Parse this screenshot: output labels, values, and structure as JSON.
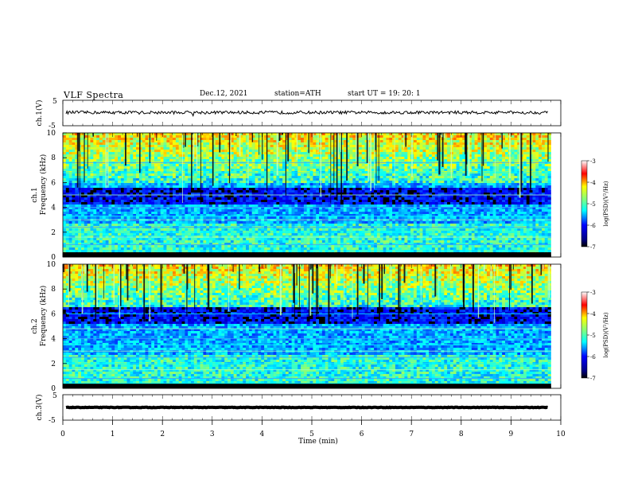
{
  "header": {
    "title": "VLF  Spectra",
    "date": "Dec.12, 2021",
    "station": "station=ATH",
    "start": "start  UT  =    19: 20: 1"
  },
  "chart_data": [
    {
      "type": "line",
      "panel": "ch1-waveform",
      "ylabel": "ch.1(V)",
      "xlim": [
        0,
        10
      ],
      "ylim": [
        -5,
        5
      ],
      "yticks": [
        "5",
        "-5"
      ],
      "level_mean": 0.2,
      "level_band": [
        -0.4,
        0.8
      ]
    },
    {
      "type": "heatmap",
      "panel": "ch1-spectrogram",
      "ylabel_top": "ch.1",
      "ylabel": "Frequency  (kHz)",
      "xlim": [
        0,
        9.8
      ],
      "ylim": [
        0,
        10
      ],
      "yticks": [
        "0",
        "2",
        "4",
        "6",
        "8",
        "10"
      ],
      "colorbar": {
        "label": "log(PSD)(V²/Hz)",
        "range": [
          -7,
          -3
        ],
        "ticks": [
          "-3",
          "-4",
          "-5",
          "-6",
          "-7"
        ]
      },
      "features": {
        "dark_band_khz": [
          4.2,
          5.6
        ],
        "bright_upper_band_khz": [
          6.0,
          10.0
        ],
        "horizontal_lines_khz": [
          0.5,
          1.0,
          1.6,
          2.0,
          2.4,
          3.0,
          3.3,
          4.0,
          5.0,
          6.8,
          7.6
        ]
      }
    },
    {
      "type": "heatmap",
      "panel": "ch2-spectrogram",
      "ylabel_top": "ch.2",
      "ylabel": "Frequency  (kHz)",
      "xlim": [
        0,
        9.8
      ],
      "ylim": [
        0,
        10
      ],
      "yticks": [
        "0",
        "2",
        "4",
        "6",
        "8",
        "10"
      ],
      "colorbar": {
        "label": "log(PSD)(V²/Hz)",
        "range": [
          -7,
          -3
        ],
        "ticks": [
          "-3",
          "-4",
          "-5",
          "-6",
          "-7"
        ]
      },
      "features": {
        "dark_band_khz": [
          5.2,
          6.5
        ],
        "bright_upper_band_khz": [
          6.5,
          10.0
        ],
        "horizontal_lines_khz": [
          0.4,
          0.8,
          1.5,
          2.0,
          2.5,
          3.0,
          3.5,
          4.0,
          4.8,
          6.0
        ]
      }
    },
    {
      "type": "line",
      "panel": "ch3-waveform",
      "ylabel": "ch.3(V)",
      "xlabel": "Time  (min)",
      "xlim": [
        0,
        10
      ],
      "ylim": [
        -5,
        5
      ],
      "yticks": [
        "5",
        "-5"
      ],
      "xticks": [
        "0",
        "1",
        "2",
        "3",
        "4",
        "5",
        "6",
        "7",
        "8",
        "9",
        "10"
      ],
      "level_mean": 0.0,
      "level_band": [
        -0.1,
        0.1
      ]
    }
  ],
  "colors": {
    "jet_dark": "#00007f",
    "jet_blue": "#0000ff",
    "jet_cyan": "#00ffff",
    "jet_green": "#7fff7f",
    "jet_yellow": "#ffff00",
    "jet_red": "#ff0000",
    "waveform": "#000000"
  }
}
